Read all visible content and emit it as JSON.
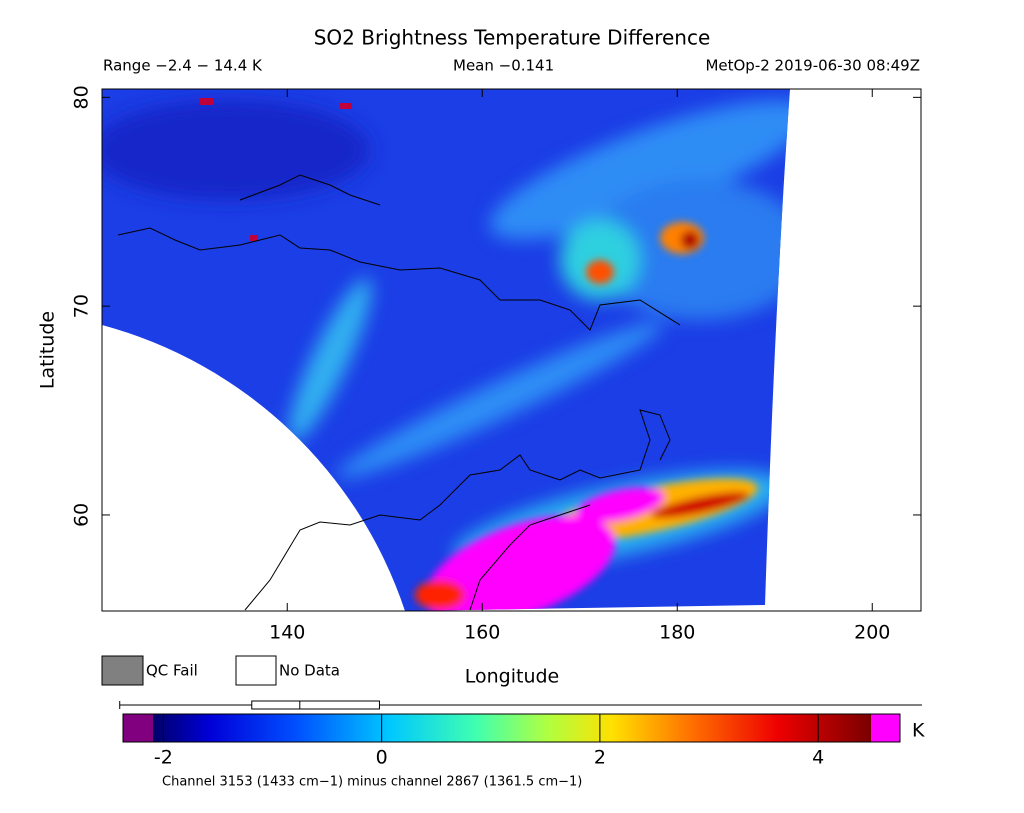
{
  "header": {
    "title": "SO2 Brightness Temperature Difference",
    "range": "Range −2.4 − 14.4 K",
    "mean": "Mean −0.141",
    "instrument": "MetOp-2 2019-06-30 08:49Z"
  },
  "map": {
    "x_label": "Longitude",
    "y_label": "Latitude",
    "xlim": [
      121.0,
      205.0
    ],
    "ylim": [
      55.4,
      80.4
    ],
    "xticks": [
      140,
      160,
      180,
      200
    ],
    "yticks": [
      60,
      70,
      80
    ]
  },
  "legend": {
    "items": [
      "QC Fail",
      "No Data"
    ],
    "colors": [
      "#808080",
      "#ffffff"
    ]
  },
  "colorbar": {
    "lim": [
      -2.37,
      4.75
    ],
    "ticks": [
      -2,
      0,
      2,
      4
    ],
    "unit": "K",
    "boxplot": {
      "low": -2.4,
      "q1": -1.19,
      "median": -0.75,
      "q3": -0.02
    }
  },
  "footnote": "Channel 3153 (1433 cm−1) minus channel 2867 (1361.5 cm−1)"
}
